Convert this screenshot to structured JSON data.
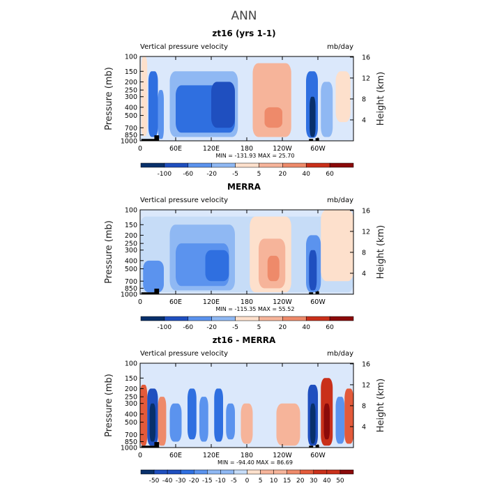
{
  "figure_title": "ANN",
  "colormap_8": [
    "#08306b",
    "#1f4fbf",
    "#2f6fe0",
    "#5b93ee",
    "#8fb8f3",
    "#c6dcf7",
    "#fde0cc",
    "#f6b49a",
    "#ee8a6a",
    "#e35a3a",
    "#c9301a",
    "#8b0a0a"
  ],
  "chart_data": [
    {
      "type": "heatmap",
      "title": "zt16 (yrs 1-1)",
      "subtitle_left": "Vertical pressure velocity",
      "subtitle_right": "mb/day",
      "xlabel": "",
      "ylabel": "Pressure (mb)",
      "ylabel_right": "Height (km)",
      "x_ticks": [
        "0",
        "60E",
        "120E",
        "180",
        "120W",
        "60W"
      ],
      "y_ticks": [
        "100",
        "150",
        "200",
        "250",
        "300",
        "400",
        "500",
        "700",
        "850",
        "1000"
      ],
      "y_right_ticks": [
        "16",
        "12",
        "8",
        "4"
      ],
      "min_max": "MIN = -131.93   MAX =  25.70",
      "colorbar_labels": [
        "-100",
        "-60",
        "-20",
        "-5",
        "5",
        "20",
        "40",
        "60"
      ],
      "regions": [
        {
          "lon": [
            2,
            12
          ],
          "p": [
            100,
            880
          ],
          "level": 6
        },
        {
          "lon": [
            14,
            30
          ],
          "p": [
            150,
            900
          ],
          "level": 2
        },
        {
          "lon": [
            30,
            40
          ],
          "p": [
            250,
            950
          ],
          "level": 3
        },
        {
          "lon": [
            50,
            165
          ],
          "p": [
            150,
            900
          ],
          "level": 4
        },
        {
          "lon": [
            60,
            160
          ],
          "p": [
            220,
            800
          ],
          "level": 2
        },
        {
          "lon": [
            120,
            160
          ],
          "p": [
            200,
            700
          ],
          "level": 1
        },
        {
          "lon": [
            190,
            255
          ],
          "p": [
            120,
            900
          ],
          "level": 7
        },
        {
          "lon": [
            210,
            240
          ],
          "p": [
            400,
            700
          ],
          "level": 8
        },
        {
          "lon": [
            280,
            300
          ],
          "p": [
            150,
            920
          ],
          "level": 2
        },
        {
          "lon": [
            286,
            296
          ],
          "p": [
            300,
            900
          ],
          "level": 0
        },
        {
          "lon": [
            305,
            325
          ],
          "p": [
            200,
            900
          ],
          "level": 4
        },
        {
          "lon": [
            330,
            355
          ],
          "p": [
            150,
            600
          ],
          "level": 6
        }
      ]
    },
    {
      "type": "heatmap",
      "title": "MERRA",
      "subtitle_left": "Vertical pressure velocity",
      "subtitle_right": "mb/day",
      "xlabel": "",
      "ylabel": "Pressure (mb)",
      "ylabel_right": "Height (km)",
      "x_ticks": [
        "0",
        "60E",
        "120E",
        "180",
        "120W",
        "60W"
      ],
      "y_ticks": [
        "100",
        "150",
        "200",
        "250",
        "300",
        "400",
        "500",
        "700",
        "850",
        "1000"
      ],
      "y_right_ticks": [
        "16",
        "12",
        "8",
        "4"
      ],
      "min_max": "MIN = -115.35   MAX =  55.52",
      "colorbar_labels": [
        "-100",
        "-60",
        "-20",
        "-5",
        "5",
        "20",
        "40",
        "60"
      ],
      "regions": [
        {
          "lon": [
            0,
            360
          ],
          "p": [
            120,
            950
          ],
          "level": 5
        },
        {
          "lon": [
            50,
            160
          ],
          "p": [
            150,
            900
          ],
          "level": 4
        },
        {
          "lon": [
            60,
            150
          ],
          "p": [
            250,
            800
          ],
          "level": 3
        },
        {
          "lon": [
            110,
            150
          ],
          "p": [
            300,
            700
          ],
          "level": 2
        },
        {
          "lon": [
            5,
            40
          ],
          "p": [
            400,
            950
          ],
          "level": 3
        },
        {
          "lon": [
            185,
            255
          ],
          "p": [
            120,
            950
          ],
          "level": 6
        },
        {
          "lon": [
            200,
            245
          ],
          "p": [
            220,
            850
          ],
          "level": 7
        },
        {
          "lon": [
            215,
            235
          ],
          "p": [
            350,
            700
          ],
          "level": 8
        },
        {
          "lon": [
            280,
            305
          ],
          "p": [
            200,
            950
          ],
          "level": 3
        },
        {
          "lon": [
            285,
            298
          ],
          "p": [
            300,
            900
          ],
          "level": 1
        },
        {
          "lon": [
            305,
            360
          ],
          "p": [
            100,
            700
          ],
          "level": 6
        }
      ]
    },
    {
      "type": "heatmap",
      "title": "zt16 - MERRA",
      "subtitle_left": "Vertical pressure velocity",
      "subtitle_right": "mb/day",
      "xlabel": "",
      "ylabel": "Pressure (mb)",
      "ylabel_right": "Height (km)",
      "x_ticks": [
        "0",
        "60E",
        "120E",
        "180",
        "120W",
        "60W"
      ],
      "y_ticks": [
        "100",
        "150",
        "200",
        "250",
        "300",
        "400",
        "500",
        "700",
        "850",
        "1000"
      ],
      "y_right_ticks": [
        "16",
        "12",
        "8",
        "4"
      ],
      "min_max": "MIN = -94.40   MAX =  86.69",
      "colorbar_labels": [
        "-50",
        "-40",
        "-30",
        "-20",
        "-15",
        "-10",
        "-5",
        "0",
        "5",
        "10",
        "15",
        "20",
        "30",
        "40",
        "50"
      ],
      "regions": [
        {
          "lon": [
            0,
            12
          ],
          "p": [
            180,
            950
          ],
          "level": 9
        },
        {
          "lon": [
            12,
            30
          ],
          "p": [
            200,
            950
          ],
          "level": 1
        },
        {
          "lon": [
            16,
            26
          ],
          "p": [
            300,
            850
          ],
          "level": 0
        },
        {
          "lon": [
            30,
            44
          ],
          "p": [
            250,
            950
          ],
          "level": 8
        },
        {
          "lon": [
            50,
            70
          ],
          "p": [
            300,
            850
          ],
          "level": 3
        },
        {
          "lon": [
            80,
            95
          ],
          "p": [
            200,
            800
          ],
          "level": 2
        },
        {
          "lon": [
            100,
            115
          ],
          "p": [
            250,
            850
          ],
          "level": 3
        },
        {
          "lon": [
            125,
            140
          ],
          "p": [
            200,
            850
          ],
          "level": 2
        },
        {
          "lon": [
            145,
            160
          ],
          "p": [
            300,
            800
          ],
          "level": 3
        },
        {
          "lon": [
            170,
            190
          ],
          "p": [
            300,
            900
          ],
          "level": 7
        },
        {
          "lon": [
            230,
            270
          ],
          "p": [
            300,
            950
          ],
          "level": 7
        },
        {
          "lon": [
            283,
            300
          ],
          "p": [
            180,
            950
          ],
          "level": 1
        },
        {
          "lon": [
            287,
            296
          ],
          "p": [
            300,
            900
          ],
          "level": 0
        },
        {
          "lon": [
            305,
            325
          ],
          "p": [
            150,
            950
          ],
          "level": 10
        },
        {
          "lon": [
            310,
            320
          ],
          "p": [
            300,
            800
          ],
          "level": 11
        },
        {
          "lon": [
            330,
            345
          ],
          "p": [
            250,
            900
          ],
          "level": 3
        },
        {
          "lon": [
            345,
            360
          ],
          "p": [
            200,
            900
          ],
          "level": 9
        }
      ]
    }
  ]
}
